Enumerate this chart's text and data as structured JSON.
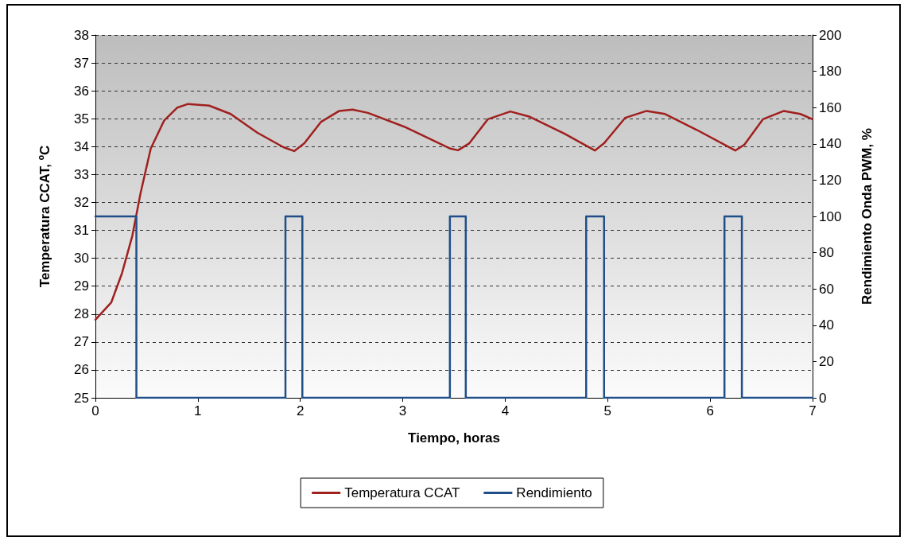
{
  "chart_data": {
    "type": "line",
    "xlabel": "Tiempo, horas",
    "ylabel": "Temperatura CCAT, ºC",
    "y2label": "Rendimiento Onda PWM, %",
    "xlim": [
      0,
      7
    ],
    "xticks": [
      0,
      1,
      2,
      3,
      4,
      5,
      6,
      7
    ],
    "ylim": [
      25,
      38
    ],
    "yticks": [
      25,
      26,
      27,
      28,
      29,
      30,
      31,
      32,
      33,
      34,
      35,
      36,
      37,
      38
    ],
    "y2lim": [
      0,
      200
    ],
    "y2ticks": [
      0,
      20,
      40,
      60,
      80,
      100,
      120,
      140,
      160,
      180,
      200
    ],
    "grid": "y",
    "legend": "bottom",
    "marker": "none",
    "line_style": "solid",
    "series": [
      {
        "name": "Temperatura CCAT",
        "color": "#a0201e",
        "x": [
          0,
          0.155,
          0.26,
          0.36,
          0.44,
          0.54,
          0.67,
          0.8,
          0.905,
          1.11,
          1.32,
          1.58,
          1.835,
          1.94,
          2.04,
          2.2,
          2.38,
          2.51,
          2.66,
          3.03,
          3.465,
          3.54,
          3.65,
          3.83,
          4.05,
          4.24,
          4.58,
          4.875,
          4.965,
          5.17,
          5.38,
          5.56,
          5.87,
          6.245,
          6.335,
          6.515,
          6.72,
          6.88,
          7
        ],
        "values": [
          27.8,
          28.42,
          29.47,
          30.8,
          32.32,
          33.93,
          34.93,
          35.4,
          35.53,
          35.47,
          35.17,
          34.5,
          33.98,
          33.84,
          34.12,
          34.88,
          35.28,
          35.33,
          35.21,
          34.69,
          33.93,
          33.87,
          34.12,
          34.98,
          35.26,
          35.07,
          34.46,
          33.86,
          34.12,
          35.03,
          35.28,
          35.17,
          34.6,
          33.86,
          34.07,
          34.98,
          35.28,
          35.17,
          34.98
        ]
      },
      {
        "name": "Rendimiento",
        "type": "step",
        "axis": "y2",
        "color": "#1f4e89",
        "x": [
          0,
          0.4,
          1.855,
          2.02,
          3.46,
          3.615,
          4.79,
          4.965,
          6.14,
          6.31,
          7
        ],
        "values": [
          100,
          0,
          100,
          0,
          100,
          0,
          100,
          0,
          100,
          0,
          0
        ]
      }
    ]
  }
}
